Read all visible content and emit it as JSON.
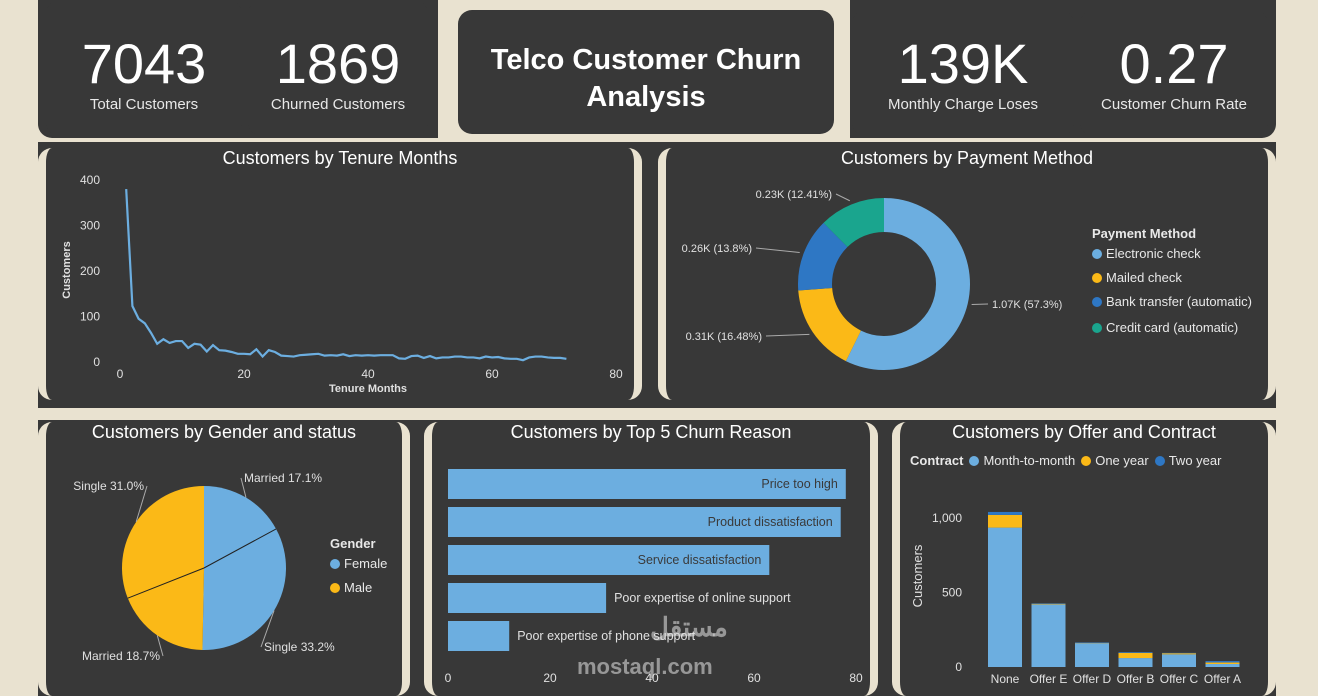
{
  "kpis": [
    {
      "value": "7043",
      "label": "Total Customers"
    },
    {
      "value": "1869",
      "label": "Churned Customers"
    },
    {
      "value": "139K",
      "label": "Monthly Charge Loses"
    },
    {
      "value": "0.27",
      "label": "Customer Churn Rate"
    }
  ],
  "header": {
    "title_line1": "Telco Customer Churn",
    "title_line2": "Analysis"
  },
  "colors": {
    "blue": "#6caee0",
    "yellow": "#fbb917",
    "darkblue": "#2e77c4",
    "teal": "#1aa58e",
    "bg": "#383838",
    "beige": "#e9e2d0"
  },
  "watermark": {
    "arabic": "مستقل",
    "latin": "mostaql.com"
  },
  "chart_data": [
    {
      "id": "tenure",
      "type": "line",
      "title": "Customers by Tenure Months",
      "xlabel": "Tenure Months",
      "ylabel": "Customers",
      "xlim": [
        0,
        80
      ],
      "ylim": [
        0,
        400
      ],
      "xticks": [
        0,
        20,
        40,
        60,
        80
      ],
      "yticks": [
        0,
        100,
        200,
        300,
        400
      ],
      "x": [
        1,
        2,
        3,
        4,
        5,
        6,
        7,
        8,
        9,
        10,
        11,
        12,
        13,
        14,
        15,
        16,
        17,
        18,
        19,
        20,
        21,
        22,
        23,
        24,
        25,
        26,
        27,
        28,
        29,
        30,
        31,
        32,
        33,
        34,
        35,
        36,
        37,
        38,
        39,
        40,
        41,
        42,
        43,
        44,
        45,
        46,
        47,
        48,
        49,
        50,
        51,
        52,
        53,
        54,
        55,
        56,
        57,
        58,
        59,
        60,
        61,
        62,
        63,
        64,
        65,
        66,
        67,
        68,
        69,
        70,
        71,
        72
      ],
      "values": [
        380,
        123,
        95,
        85,
        64,
        40,
        50,
        42,
        46,
        46,
        31,
        40,
        38,
        23,
        37,
        26,
        25,
        22,
        18,
        18,
        17,
        28,
        12,
        26,
        22,
        14,
        13,
        12,
        15,
        16,
        17,
        18,
        14,
        15,
        14,
        17,
        13,
        15,
        14,
        15,
        14,
        15,
        15,
        15,
        8,
        7,
        13,
        14,
        9,
        13,
        8,
        10,
        10,
        12,
        12,
        10,
        10,
        8,
        12,
        10,
        11,
        8,
        7,
        7,
        4,
        10,
        12,
        12,
        10,
        9,
        9,
        7
      ]
    },
    {
      "id": "payment",
      "type": "pie",
      "title": "Customers by Payment Method",
      "legend_title": "Payment Method",
      "categories": [
        "Electronic check",
        "Mailed check",
        "Bank transfer (automatic)",
        "Credit card (automatic)"
      ],
      "values": [
        57.3,
        16.48,
        13.8,
        12.41
      ],
      "labels": [
        "1.07K (57.3%)",
        "0.31K (16.48%)",
        "0.26K (13.8%)",
        "0.23K (12.41%)"
      ]
    },
    {
      "id": "gender",
      "type": "pie",
      "title": "Customers by Gender and status",
      "legend_title": "Gender",
      "categories": [
        "Female",
        "Male"
      ],
      "slices": [
        {
          "label": "Married 17.1%",
          "value": 17.1,
          "group": "Female"
        },
        {
          "label": "Single 33.2%",
          "value": 33.2,
          "group": "Female"
        },
        {
          "label": "Married 18.7%",
          "value": 18.7,
          "group": "Male"
        },
        {
          "label": "Single 31.0%",
          "value": 31.0,
          "group": "Male"
        }
      ]
    },
    {
      "id": "reasons",
      "type": "bar",
      "title": "Customers by Top 5 Churn Reason",
      "categories": [
        "Price too high",
        "Product dissatisfaction",
        "Service dissatisfaction",
        "Poor expertise of online support",
        "Poor expertise of phone support"
      ],
      "values": [
        78,
        77,
        63,
        31,
        12
      ],
      "xlim": [
        0,
        80
      ],
      "xticks": [
        0,
        20,
        40,
        60,
        80
      ]
    },
    {
      "id": "offer",
      "type": "bar",
      "title": "Customers by Offer and Contract",
      "legend_title": "Contract",
      "ylabel": "Customers",
      "categories": [
        "None",
        "Offer E",
        "Offer D",
        "Offer B",
        "Offer C",
        "Offer A"
      ],
      "series": [
        {
          "name": "Month-to-month",
          "values": [
            935,
            420,
            160,
            60,
            85,
            20
          ]
        },
        {
          "name": "One year",
          "values": [
            85,
            5,
            3,
            35,
            8,
            10
          ]
        },
        {
          "name": "Two year",
          "values": [
            20,
            2,
            2,
            5,
            2,
            10
          ]
        }
      ],
      "ylim": [
        0,
        1100
      ],
      "yticks": [
        0,
        500,
        1000
      ],
      "ytick_labels": [
        "0",
        "500",
        "1,000"
      ]
    }
  ]
}
